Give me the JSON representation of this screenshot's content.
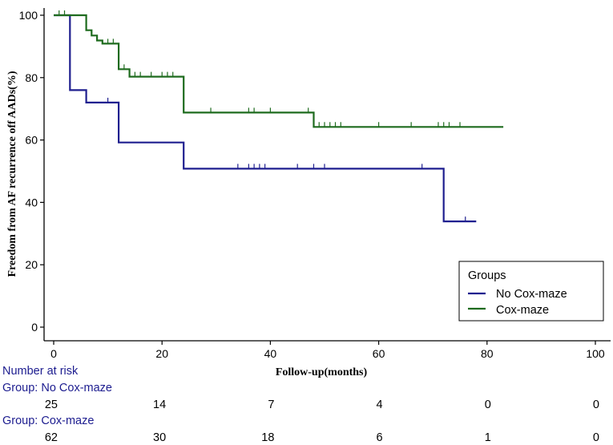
{
  "chart_data": {
    "type": "line",
    "title": "",
    "xlabel": "Follow-up(months)",
    "ylabel": "Freedom from AF recurrence off AADs(%)",
    "xlim": [
      0,
      100
    ],
    "ylim": [
      0,
      100
    ],
    "xticks": [
      0,
      20,
      40,
      60,
      80,
      100
    ],
    "yticks": [
      0,
      20,
      40,
      60,
      80,
      100
    ],
    "grid": false,
    "legend_position": "bottom-right",
    "legend_title": "Groups",
    "series": [
      {
        "name": "No Cox-maze",
        "color": "#1f1f8f",
        "steps": [
          [
            0,
            100
          ],
          [
            3,
            100
          ],
          [
            3,
            76
          ],
          [
            6,
            76
          ],
          [
            6,
            72
          ],
          [
            12,
            72
          ],
          [
            12,
            59.2
          ],
          [
            24,
            59.2
          ],
          [
            24,
            50.8
          ],
          [
            72,
            50.8
          ],
          [
            72,
            33.9
          ],
          [
            78,
            33.9
          ]
        ],
        "censored": [
          [
            10,
            72
          ],
          [
            34,
            50.8
          ],
          [
            36,
            50.8
          ],
          [
            37,
            50.8
          ],
          [
            38,
            50.8
          ],
          [
            39,
            50.8
          ],
          [
            45,
            50.8
          ],
          [
            48,
            50.8
          ],
          [
            50,
            50.8
          ],
          [
            68,
            50.8
          ],
          [
            76,
            33.9
          ]
        ]
      },
      {
        "name": "Cox-maze",
        "color": "#1e6b1e",
        "steps": [
          [
            0,
            100
          ],
          [
            6,
            100
          ],
          [
            6,
            95.2
          ],
          [
            7,
            95.2
          ],
          [
            7,
            93.5
          ],
          [
            8,
            93.5
          ],
          [
            8,
            91.9
          ],
          [
            9,
            91.9
          ],
          [
            9,
            90.9
          ],
          [
            12,
            90.9
          ],
          [
            12,
            82.7
          ],
          [
            14,
            82.7
          ],
          [
            14,
            80.3
          ],
          [
            24,
            80.3
          ],
          [
            24,
            68.8
          ],
          [
            48,
            68.8
          ],
          [
            48,
            64.2
          ],
          [
            83,
            64.2
          ]
        ],
        "censored": [
          [
            1,
            100
          ],
          [
            2,
            100
          ],
          [
            10,
            90.9
          ],
          [
            11,
            90.9
          ],
          [
            13,
            82.7
          ],
          [
            15,
            80.3
          ],
          [
            16,
            80.3
          ],
          [
            18,
            80.3
          ],
          [
            20,
            80.3
          ],
          [
            21,
            80.3
          ],
          [
            22,
            80.3
          ],
          [
            29,
            68.8
          ],
          [
            36,
            68.8
          ],
          [
            37,
            68.8
          ],
          [
            40,
            68.8
          ],
          [
            47,
            68.8
          ],
          [
            49,
            64.2
          ],
          [
            50,
            64.2
          ],
          [
            51,
            64.2
          ],
          [
            52,
            64.2
          ],
          [
            53,
            64.2
          ],
          [
            60,
            64.2
          ],
          [
            66,
            64.2
          ],
          [
            71,
            64.2
          ],
          [
            72,
            64.2
          ],
          [
            73,
            64.2
          ],
          [
            75,
            64.2
          ]
        ]
      }
    ],
    "number_at_risk": {
      "title": "Number at risk",
      "times": [
        0,
        20,
        40,
        60,
        80,
        100
      ],
      "groups": [
        {
          "label": "Group: No Cox-maze",
          "values": [
            25,
            14,
            7,
            4,
            0,
            0
          ]
        },
        {
          "label": "Group: Cox-maze",
          "values": [
            62,
            30,
            18,
            6,
            1,
            0
          ]
        }
      ]
    }
  }
}
